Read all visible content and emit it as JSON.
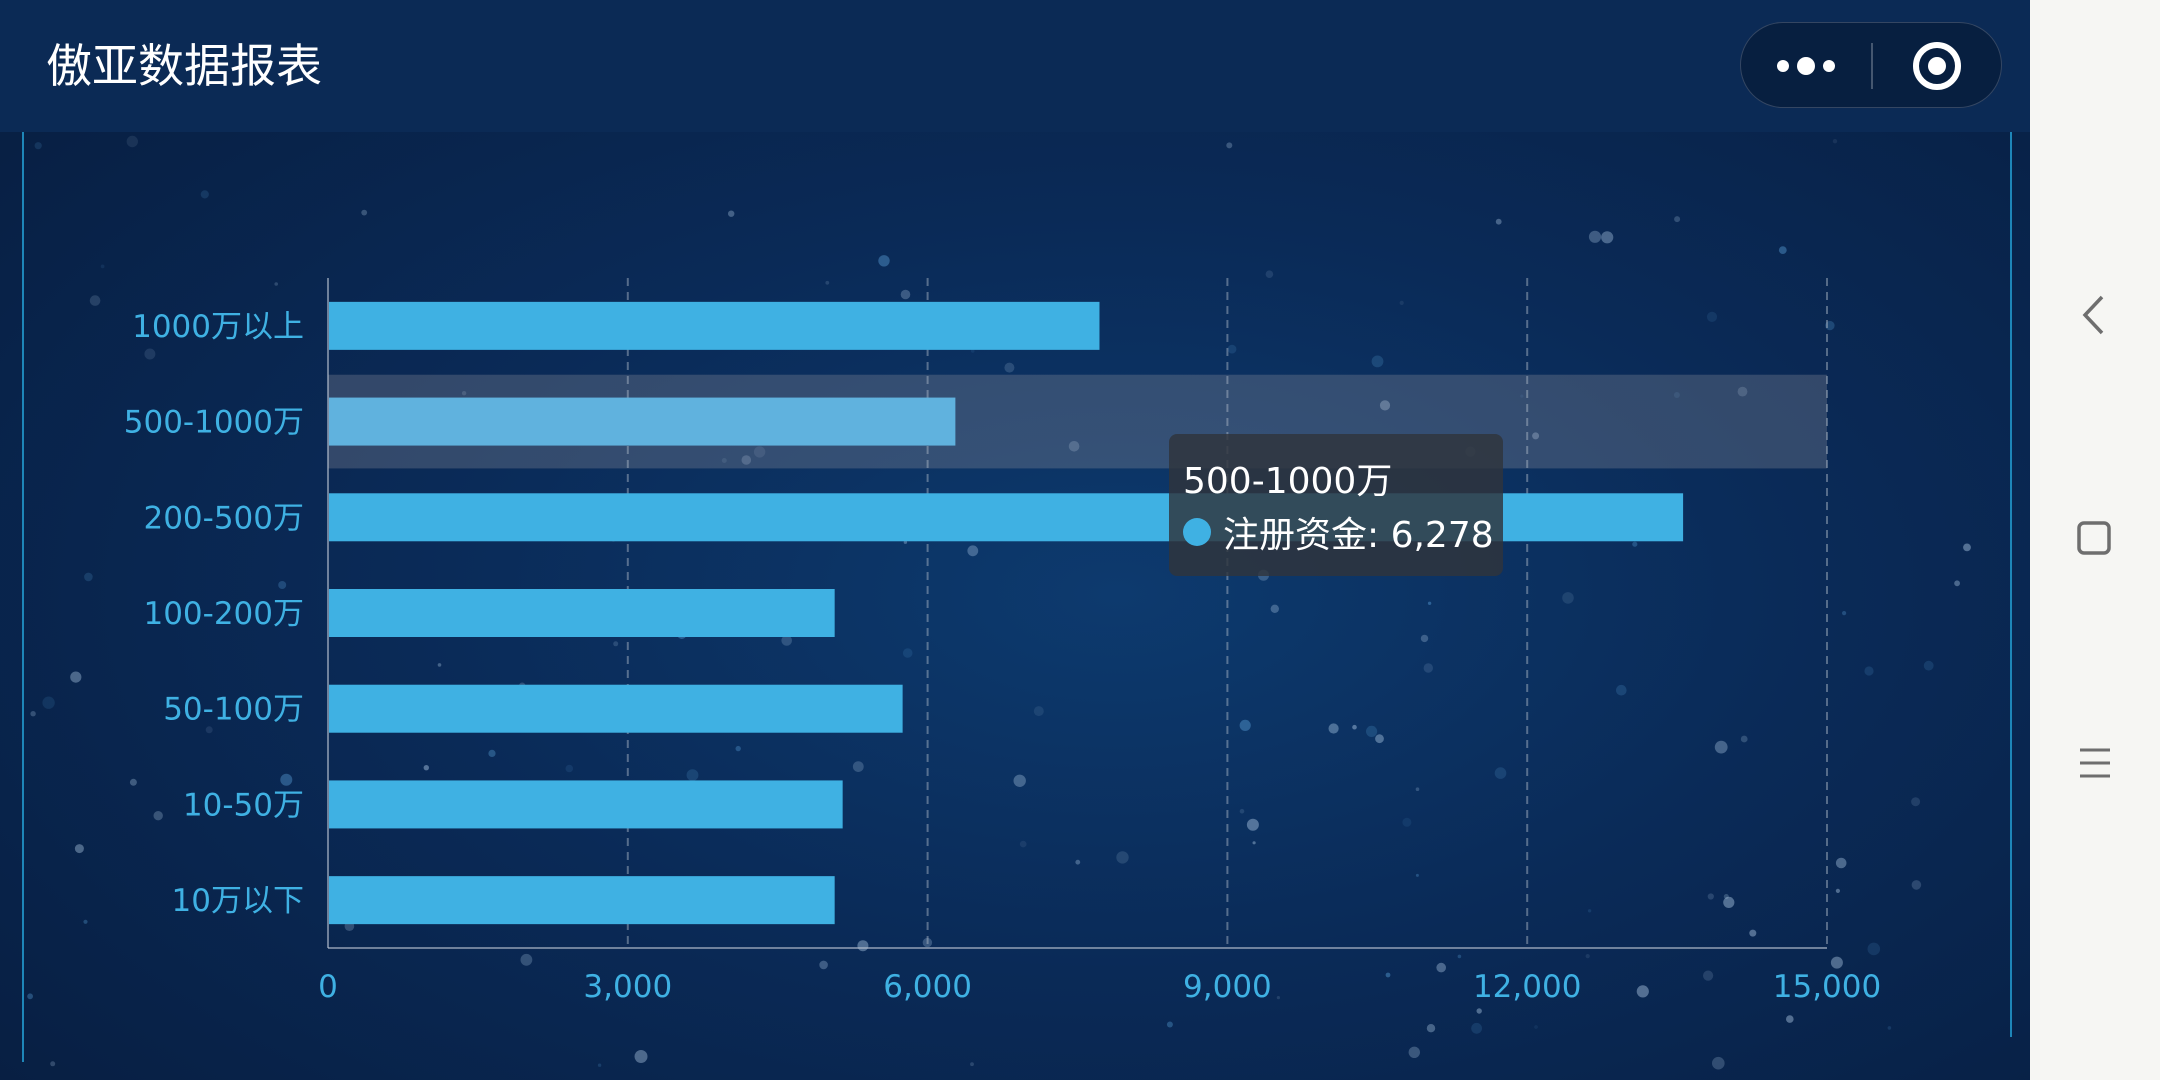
{
  "header": {
    "title": "傲亚数据报表",
    "more_icon": "more-dots-icon",
    "close_icon": "target-circle-icon"
  },
  "chart_data": {
    "type": "bar",
    "orientation": "horizontal",
    "categories": [
      "1000万以上",
      "500-1000万",
      "200-500万",
      "100-200万",
      "50-100万",
      "10-50万",
      "10万以下"
    ],
    "series": [
      {
        "name": "注册资金",
        "values": [
          7720,
          6278,
          13560,
          5070,
          5750,
          5150,
          5070
        ]
      }
    ],
    "xlim": [
      0,
      15000
    ],
    "xticks": [
      "0",
      "3,000",
      "6,000",
      "9,000",
      "12,000",
      "15,000"
    ],
    "xtick_values": [
      0,
      3000,
      6000,
      9000,
      12000,
      15000
    ],
    "grid": "vertical dashed",
    "bar_color": "#3fb1e3",
    "highlighted_category": "500-1000万",
    "tooltip": {
      "title": "500-1000万",
      "series_name": "注册资金",
      "value_text": "6,278",
      "line": "注册资金: 6,278"
    }
  },
  "navbar": {
    "back_icon": "back-chevron-icon",
    "home_icon": "home-square-icon",
    "menu_icon": "menu-lines-icon"
  },
  "colors": {
    "background": "#0a2a57",
    "header": "#0b2a55",
    "bar": "#3fb1e3",
    "bar_highlight": "#60b2de",
    "axis_text": "#3fb1e3",
    "navbar": "#f6f6f3"
  }
}
